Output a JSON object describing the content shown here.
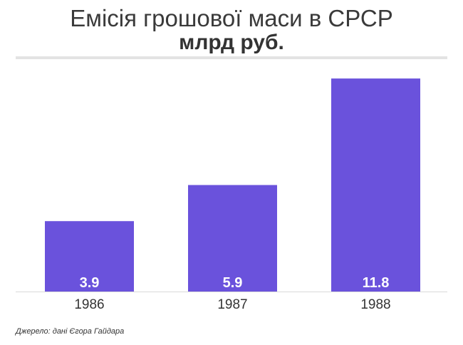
{
  "chart_data": {
    "type": "bar",
    "title": "Емісія грошової маси в СРСР",
    "subtitle": "млрд руб.",
    "categories": [
      "1986",
      "1987",
      "1988"
    ],
    "values": [
      3.9,
      5.9,
      11.8
    ],
    "value_labels": [
      "3.9",
      "5.9",
      "11.8"
    ],
    "ylim": [
      0,
      12.2
    ],
    "grid": false,
    "legend": "none",
    "bar_color": "#6a52dc",
    "source": "Джерело: дані Єгора Гайдара"
  }
}
